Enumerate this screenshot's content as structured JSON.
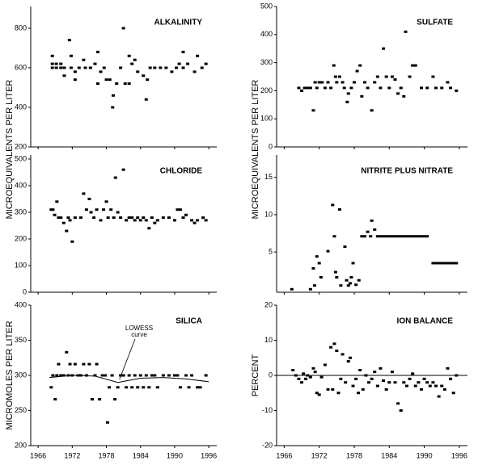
{
  "chart_data": [
    {
      "type": "scatter",
      "title": "ALKALINITY",
      "ylabel": "MICROEQUIVALENTS PER LITER",
      "color": "#000000",
      "xlim": [
        1964.7,
        1997.4
      ],
      "xticks": [
        1966,
        1972,
        1978,
        1984,
        1990,
        1996
      ],
      "xtick_labels": false,
      "ylim": [
        200,
        910
      ],
      "yticks": [
        200,
        400,
        600,
        800
      ],
      "x": [
        1968.5,
        1968.5,
        1968.5,
        1969.2,
        1969.2,
        1970,
        1970,
        1970.6,
        1970.6,
        1971.5,
        1971.8,
        1971.8,
        1972.5,
        1972.5,
        1973.2,
        1974,
        1974.3,
        1975.2,
        1976,
        1976.5,
        1976.5,
        1977,
        1977.6,
        1978,
        1978.6,
        1979.1,
        1979.2,
        1979.8,
        1980.5,
        1981,
        1981.3,
        1982,
        1982,
        1982.5,
        1983,
        1983.5,
        1984.5,
        1985,
        1985.2,
        1985.7,
        1986.5,
        1987.5,
        1988.5,
        1989.5,
        1990.3,
        1990.8,
        1991.5,
        1991.5,
        1992.3,
        1993.5,
        1994,
        1994.8,
        1995.5
      ],
      "values": [
        660,
        620,
        600,
        620,
        600,
        620,
        600,
        560,
        600,
        740,
        660,
        600,
        580,
        540,
        600,
        640,
        600,
        600,
        620,
        680,
        520,
        580,
        600,
        540,
        540,
        400,
        460,
        520,
        600,
        800,
        520,
        660,
        520,
        620,
        640,
        580,
        560,
        440,
        540,
        600,
        600,
        600,
        600,
        580,
        600,
        620,
        680,
        600,
        620,
        580,
        660,
        600,
        620
      ]
    },
    {
      "type": "scatter",
      "title": "SULFATE",
      "ylabel": "MICROEQUIVALENTS PER LITER",
      "color": "#000000",
      "xlim": [
        1964.7,
        1997.4
      ],
      "xticks": [
        1966,
        1972,
        1978,
        1984,
        1990,
        1996
      ],
      "xtick_labels": false,
      "ylim": [
        0,
        500
      ],
      "yticks": [
        0,
        100,
        200,
        300,
        400,
        500
      ],
      "x": [
        1968.5,
        1969,
        1969.5,
        1970,
        1970.5,
        1971,
        1971.3,
        1971.6,
        1972,
        1972.5,
        1973,
        1973.5,
        1974,
        1974.5,
        1974.8,
        1975,
        1975.5,
        1976,
        1976.3,
        1976.8,
        1977,
        1977.5,
        1978,
        1978.5,
        1979,
        1979.3,
        1979.8,
        1980.3,
        1981,
        1981.5,
        1982,
        1982.5,
        1983,
        1983.5,
        1984,
        1984.5,
        1985,
        1985.5,
        1986,
        1986.5,
        1986.8,
        1987.5,
        1988,
        1988.5,
        1989.5,
        1990.5,
        1991.5,
        1992,
        1993,
        1994,
        1994.5,
        1995.5
      ],
      "values": [
        210,
        200,
        210,
        210,
        210,
        130,
        230,
        210,
        230,
        230,
        210,
        230,
        210,
        290,
        250,
        230,
        250,
        230,
        210,
        160,
        190,
        210,
        230,
        270,
        290,
        180,
        230,
        210,
        130,
        230,
        250,
        210,
        350,
        250,
        210,
        250,
        240,
        190,
        210,
        180,
        410,
        250,
        290,
        290,
        210,
        210,
        250,
        210,
        210,
        230,
        210,
        200
      ]
    },
    {
      "type": "scatter",
      "title": "CHLORIDE",
      "color": "#000000",
      "xlim": [
        1964.7,
        1997.4
      ],
      "xticks": [
        1966,
        1972,
        1978,
        1984,
        1990,
        1996
      ],
      "xtick_labels": false,
      "ylim": [
        0,
        515
      ],
      "yticks": [
        0,
        100,
        200,
        300,
        400,
        500
      ],
      "x": [
        1968.3,
        1968.6,
        1968.9,
        1969.3,
        1969.6,
        1970,
        1970.5,
        1971,
        1971.3,
        1971.6,
        1972,
        1972.5,
        1973.5,
        1974,
        1974.5,
        1975,
        1975.3,
        1975.8,
        1976.3,
        1977,
        1977.5,
        1978,
        1978.3,
        1978.8,
        1979.3,
        1979.6,
        1980,
        1980.5,
        1981,
        1981.5,
        1982,
        1982.5,
        1983,
        1983.5,
        1984,
        1984.5,
        1985,
        1985.5,
        1986,
        1986.5,
        1987,
        1988,
        1989,
        1990,
        1990.5,
        1991,
        1991.5,
        1992,
        1993,
        1993.5,
        1994,
        1995,
        1995.5
      ],
      "values": [
        310,
        310,
        290,
        340,
        280,
        280,
        260,
        230,
        280,
        270,
        190,
        280,
        280,
        370,
        310,
        350,
        300,
        280,
        310,
        270,
        310,
        340,
        280,
        310,
        280,
        430,
        300,
        280,
        460,
        270,
        280,
        280,
        270,
        280,
        270,
        280,
        270,
        240,
        280,
        260,
        270,
        280,
        280,
        270,
        310,
        310,
        280,
        290,
        270,
        260,
        270,
        280,
        270
      ]
    },
    {
      "type": "scatter",
      "title": "NITRITE PLUS NITRATE",
      "color": "#000000",
      "xlim": [
        1964.7,
        1997.4
      ],
      "xticks": [
        1966,
        1972,
        1978,
        1984,
        1990,
        1996
      ],
      "xtick_labels": false,
      "ylim": [
        -0.4,
        18
      ],
      "yticks": [
        5,
        10,
        15
      ],
      "x": [
        1967.3,
        1970.5,
        1971,
        1971.2,
        1971.6,
        1972,
        1972.3,
        1973.5,
        1974.3,
        1974.6,
        1974.8,
        1975,
        1975.5,
        1975.7,
        1976.4,
        1976.7,
        1977,
        1977.3,
        1977.5,
        1977.8,
        1978.3,
        1978.8,
        1979.3,
        1979.8,
        1980.3,
        1980.8,
        1981,
        1981.5,
        1982,
        1982.5,
        1983,
        1983.5,
        1984,
        1984.5,
        1985,
        1985.5,
        1986,
        1986.5,
        1987,
        1987.5,
        1988,
        1988.5,
        1989,
        1989.5,
        1990,
        1990.5,
        1991.5,
        1992,
        1992.5,
        1993,
        1993.5,
        1994,
        1994.5,
        1995,
        1995.5
      ],
      "values": [
        0,
        0,
        2.8,
        0.5,
        4.4,
        3.5,
        1.6,
        5.1,
        11.3,
        7.1,
        2.3,
        1.6,
        10.7,
        0.5,
        5.7,
        1.2,
        0.5,
        0.8,
        1.6,
        3.5,
        0.6,
        1.2,
        7.1,
        7.1,
        7.7,
        7.1,
        9.2,
        8.0,
        7.1,
        7.1,
        7.1,
        7.1,
        7.1,
        7.1,
        7.1,
        7.1,
        7.1,
        7.1,
        7.1,
        7.1,
        7.1,
        7.1,
        7.1,
        7.1,
        7.1,
        7.1,
        3.5,
        3.5,
        3.5,
        3.5,
        3.5,
        3.5,
        3.5,
        3.5,
        3.5
      ]
    },
    {
      "type": "scatter",
      "title": "SILICA",
      "ylabel": "MICROMOLES PER LITER",
      "color": "#000000",
      "xlim": [
        1964.7,
        1997.4
      ],
      "xticks": [
        1966,
        1972,
        1978,
        1984,
        1990,
        1996
      ],
      "ylim": [
        200,
        400
      ],
      "yticks": [
        200,
        250,
        300,
        350,
        400
      ],
      "annotation_lines": [
        "LOWESS",
        "curve"
      ],
      "lowess": {
        "x": [
          1968,
          1972,
          1976,
          1980,
          1984,
          1988,
          1992,
          1996
        ],
        "values": [
          297,
          300,
          299,
          290,
          296,
          297,
          295,
          291
        ]
      },
      "x": [
        1968.3,
        1968.6,
        1969,
        1969.3,
        1969.6,
        1970,
        1970.5,
        1971,
        1971.3,
        1971.6,
        1972,
        1972.5,
        1973,
        1973.5,
        1974,
        1974.5,
        1975,
        1975.5,
        1976,
        1976.3,
        1976.8,
        1977.3,
        1977.8,
        1978.2,
        1978.5,
        1979,
        1979.5,
        1980,
        1980.5,
        1981,
        1981.5,
        1982,
        1982.5,
        1983,
        1983.5,
        1984,
        1984.5,
        1985,
        1985.5,
        1986,
        1986.5,
        1987,
        1988,
        1989,
        1990,
        1990.5,
        1991,
        1992,
        1992.5,
        1993,
        1994,
        1994.5,
        1995.5
      ],
      "values": [
        283,
        300,
        266,
        300,
        316,
        300,
        300,
        333,
        300,
        316,
        300,
        316,
        300,
        300,
        316,
        300,
        316,
        266,
        300,
        316,
        266,
        300,
        300,
        233,
        283,
        300,
        266,
        283,
        300,
        300,
        283,
        300,
        283,
        300,
        283,
        300,
        283,
        300,
        283,
        300,
        300,
        283,
        300,
        300,
        300,
        300,
        283,
        300,
        283,
        300,
        283,
        283,
        300
      ]
    },
    {
      "type": "scatter",
      "title": "ION BALANCE",
      "ylabel": "PERCENT",
      "color": "#000000",
      "xlim": [
        1964.7,
        1997.4
      ],
      "xticks": [
        1966,
        1972,
        1978,
        1984,
        1990,
        1996
      ],
      "ylim": [
        -20,
        20
      ],
      "yticks": [
        -20,
        -10,
        0,
        10,
        20
      ],
      "refline": 0,
      "x": [
        1967.5,
        1968,
        1968.5,
        1969,
        1969.3,
        1969.7,
        1970,
        1970.5,
        1971,
        1971.3,
        1971.6,
        1972,
        1972.4,
        1973,
        1973.5,
        1974,
        1974.3,
        1974.6,
        1975,
        1975.3,
        1975.7,
        1976,
        1976.5,
        1977,
        1977.3,
        1977.8,
        1978.3,
        1978.7,
        1979,
        1979.5,
        1980,
        1980.5,
        1981,
        1981.5,
        1982,
        1982.5,
        1983,
        1983.5,
        1984,
        1984.5,
        1985,
        1985.5,
        1986,
        1986.5,
        1987,
        1987.5,
        1988,
        1988.5,
        1989,
        1989.5,
        1990,
        1990.5,
        1991,
        1991.5,
        1992,
        1992.5,
        1993,
        1993.5,
        1994,
        1994.5,
        1995,
        1995.5
      ],
      "values": [
        1.5,
        0,
        -1,
        -2,
        0.5,
        -1,
        0,
        -0.5,
        2,
        1,
        -5,
        -5.5,
        -0.5,
        3,
        -4,
        8,
        -4,
        9,
        7,
        -5,
        -1,
        6,
        -2,
        4,
        5,
        -3,
        -1,
        -5,
        1.5,
        -4,
        0,
        -2,
        -1,
        1,
        -3,
        2,
        -1.5,
        -4,
        -2,
        1,
        -2,
        -8,
        -10,
        -2,
        -3,
        -1,
        0.5,
        -3,
        -2,
        -4,
        -1,
        -2,
        -3,
        -2,
        -3,
        -6,
        -3,
        -4,
        2,
        -1,
        -5,
        0
      ]
    }
  ]
}
